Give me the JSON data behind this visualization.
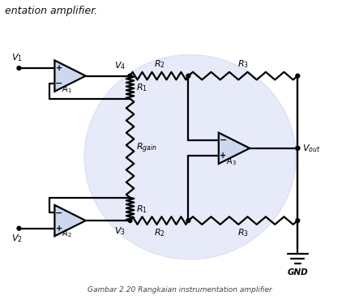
{
  "title": "Gambar 2.20 Rangkaian instrumentation amplifier",
  "caption": "Gambar 2.20 Rangkaian instrumentation amplifier",
  "bg_color": "#ffffff",
  "line_color": "#000000",
  "line_width": 1.6,
  "fig_width": 4.43,
  "fig_height": 3.7,
  "dpi": 100,
  "bg_circle_color": "#c0c8ee",
  "bg_circle_alpha": 0.38,
  "opamp_face": "#ccd8f0",
  "header_text": "entation amplifier.",
  "header_fontsize": 9
}
